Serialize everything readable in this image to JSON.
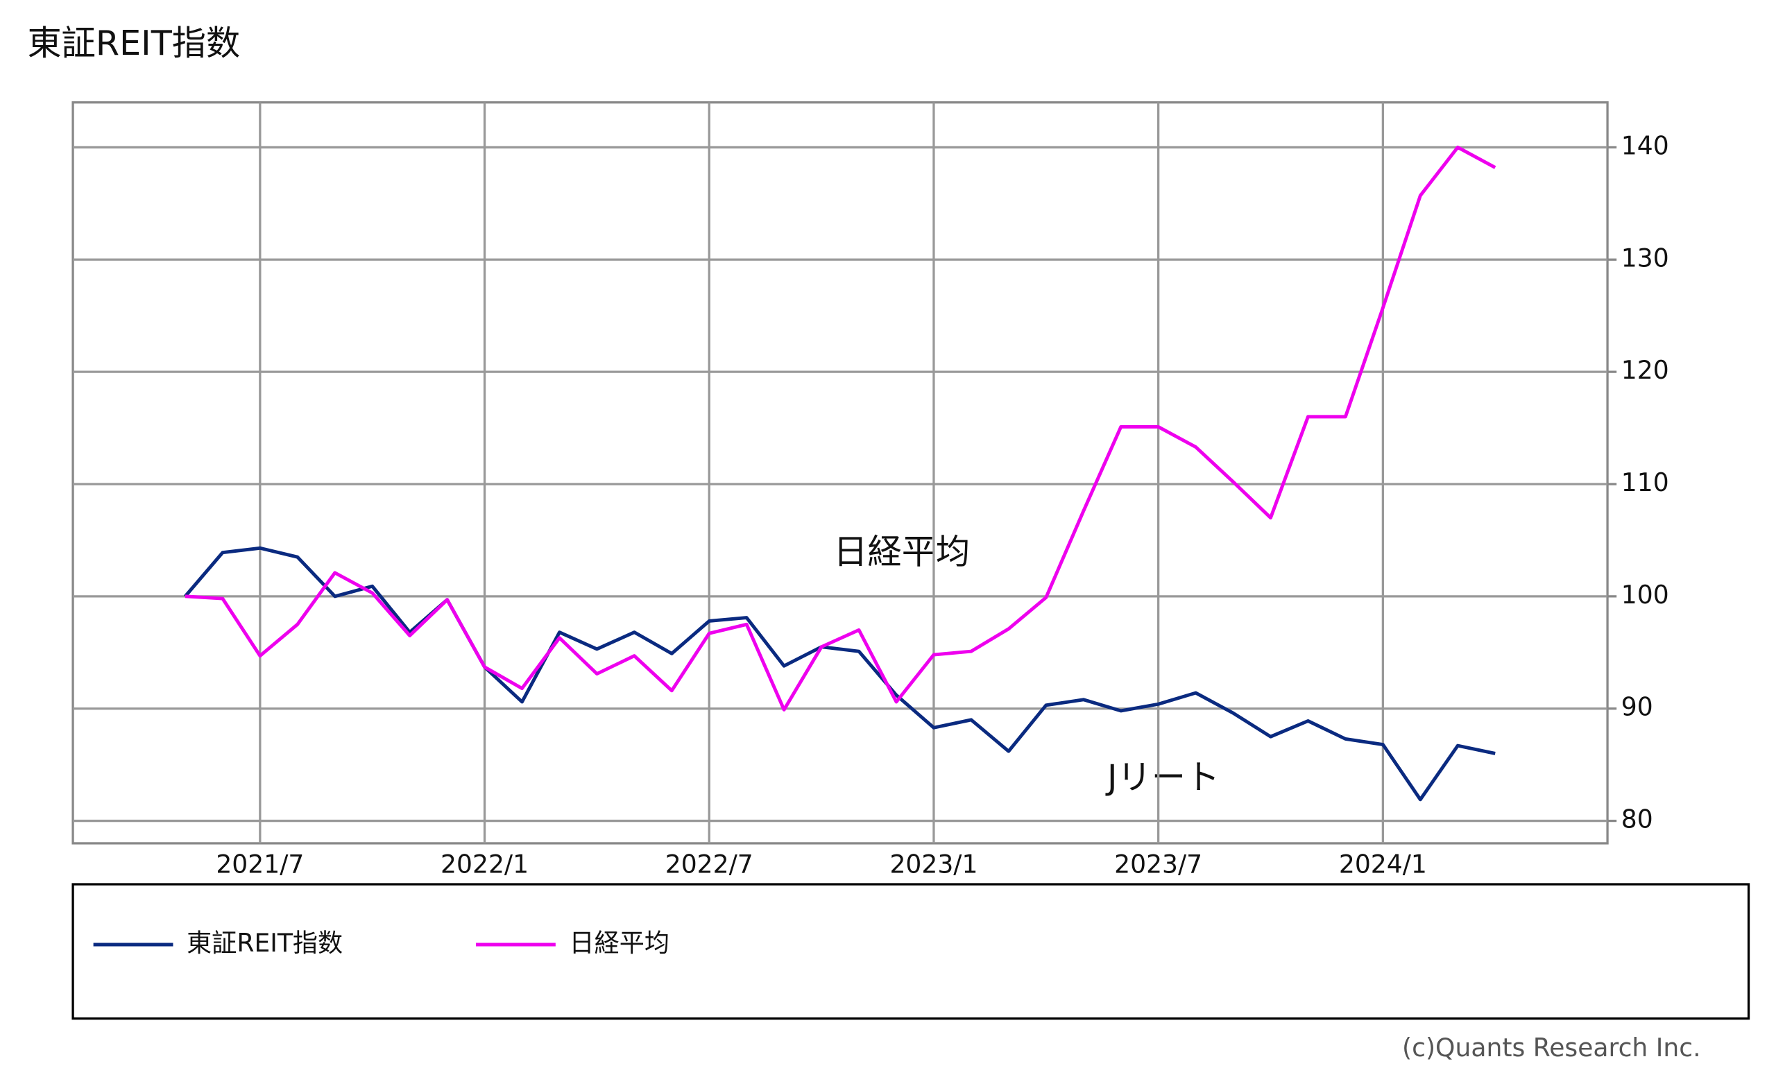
{
  "chart_data": {
    "type": "line",
    "title": "東証REIT指数",
    "x": [
      "2021/5",
      "2021/6",
      "2021/7",
      "2021/8",
      "2021/9",
      "2021/10",
      "2021/11",
      "2021/12",
      "2022/1",
      "2022/2",
      "2022/3",
      "2022/4",
      "2022/5",
      "2022/6",
      "2022/7",
      "2022/8",
      "2022/9",
      "2022/10",
      "2022/11",
      "2022/12",
      "2023/1",
      "2023/2",
      "2023/3",
      "2023/4",
      "2023/5",
      "2023/6",
      "2023/7",
      "2023/8",
      "2023/9",
      "2023/10",
      "2023/11",
      "2023/12",
      "2024/1",
      "2024/2",
      "2024/3",
      "2024/4"
    ],
    "series": [
      {
        "name": "東証REIT指数",
        "color": "#0a2a80",
        "values": [
          100,
          103.9,
          104.3,
          103.5,
          100.0,
          100.9,
          96.8,
          99.7,
          93.7,
          90.6,
          96.8,
          95.3,
          96.8,
          94.9,
          97.8,
          98.1,
          93.8,
          95.5,
          95.1,
          91.2,
          88.3,
          89.0,
          86.2,
          90.3,
          90.8,
          89.8,
          90.4,
          91.4,
          89.6,
          87.5,
          88.9,
          87.3,
          86.8,
          81.9,
          86.7,
          86.0
        ]
      },
      {
        "name": "日経平均",
        "color": "#ee00ee",
        "values": [
          100,
          99.8,
          94.7,
          97.5,
          102.1,
          100.3,
          96.5,
          99.7,
          93.7,
          91.8,
          96.3,
          93.1,
          94.7,
          91.6,
          96.7,
          97.5,
          89.9,
          95.5,
          97.0,
          90.6,
          94.8,
          95.1,
          97.1,
          99.9,
          107.6,
          115.1,
          115.1,
          113.3,
          110.2,
          107.0,
          116.0,
          116.0,
          125.7,
          135.7,
          140.0,
          138.2
        ]
      }
    ],
    "xlim": [
      "2021/2",
      "2024/7"
    ],
    "xticks": [
      "2021/7",
      "2022/1",
      "2022/7",
      "2023/1",
      "2023/7",
      "2024/1"
    ],
    "ylim": [
      78,
      144
    ],
    "yticks": [
      80,
      90,
      100,
      110,
      120,
      130,
      140
    ],
    "grid": true,
    "annotations": [
      "日経平均",
      "Jリート"
    ],
    "credit": "(c)Quants Research Inc."
  }
}
